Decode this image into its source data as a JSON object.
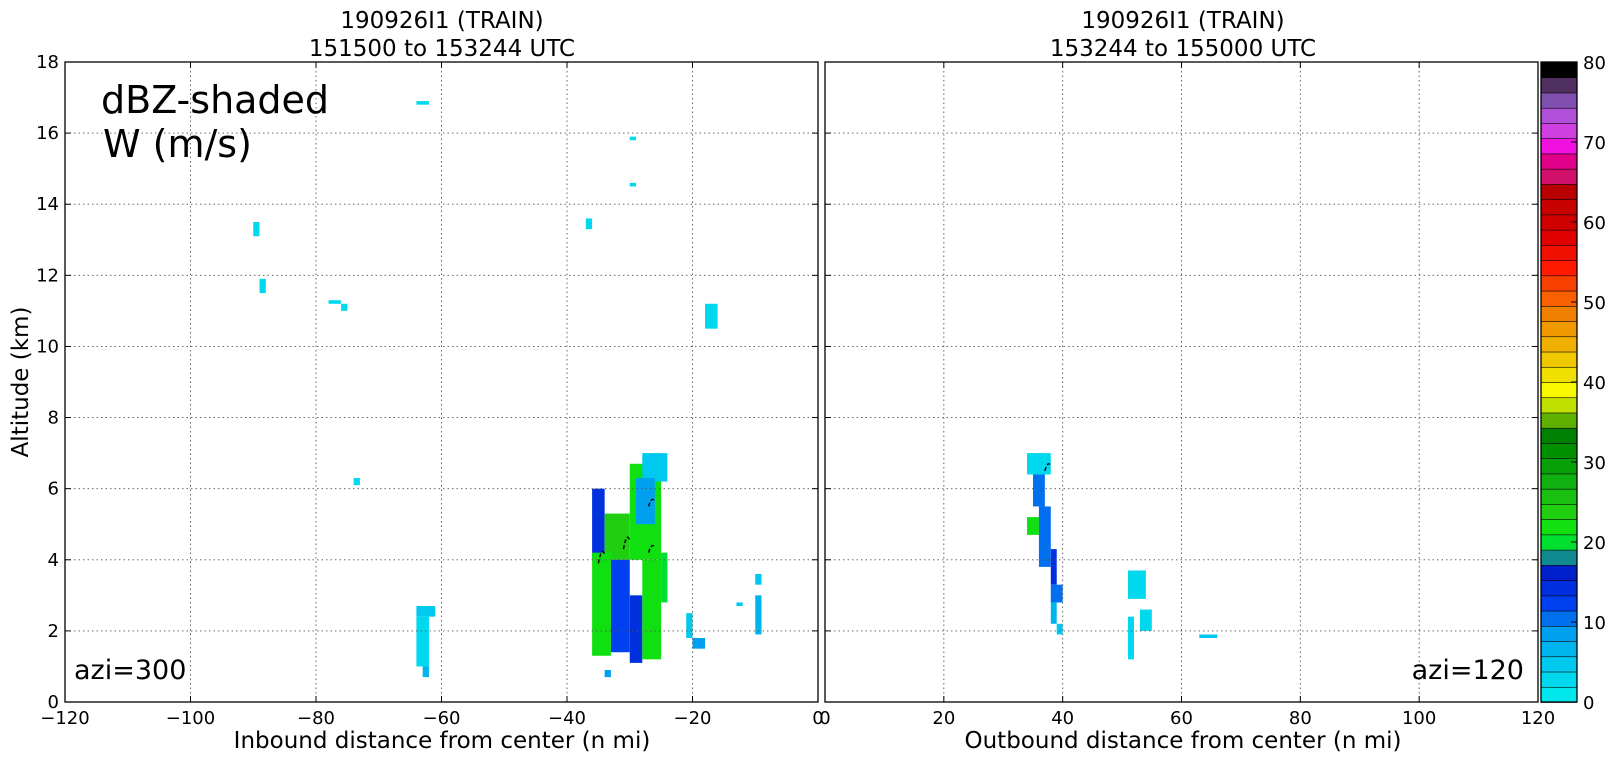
{
  "chart_data": [
    {
      "type": "heatmap",
      "title": [
        "190926I1 (TRAIN)",
        "151500 to 153244 UTC"
      ],
      "xlabel": "Inbound distance from center (n mi)",
      "ylabel": "Altitude (km)",
      "xlim": [
        -120,
        0
      ],
      "ylim": [
        0,
        18
      ],
      "xticks": [
        -120,
        -100,
        -80,
        -60,
        -40,
        -20,
        0
      ],
      "yticks": [
        0,
        2,
        4,
        6,
        8,
        10,
        12,
        14,
        16,
        18
      ],
      "grid": true,
      "annotations": [
        "dBZ-shaded",
        "W (m/s)",
        "azi=300"
      ],
      "cells": [
        {
          "x": [
            -64,
            -62
          ],
          "y": [
            16.8,
            16.9
          ],
          "dbz": 2
        },
        {
          "x": [
            -30,
            -29
          ],
          "y": [
            15.8,
            15.9
          ],
          "dbz": 2
        },
        {
          "x": [
            -30,
            -29
          ],
          "y": [
            14.5,
            14.6
          ],
          "dbz": 2
        },
        {
          "x": [
            -90,
            -89
          ],
          "y": [
            13.1,
            13.5
          ],
          "dbz": 2
        },
        {
          "x": [
            -37,
            -36
          ],
          "y": [
            13.3,
            13.6
          ],
          "dbz": 2
        },
        {
          "x": [
            -89,
            -88
          ],
          "y": [
            11.5,
            11.9
          ],
          "dbz": 2
        },
        {
          "x": [
            -78,
            -76
          ],
          "y": [
            11.2,
            11.3
          ],
          "dbz": 2
        },
        {
          "x": [
            -76,
            -75
          ],
          "y": [
            11.0,
            11.2
          ],
          "dbz": 2
        },
        {
          "x": [
            -18,
            -16
          ],
          "y": [
            10.5,
            11.2
          ],
          "dbz": 2
        },
        {
          "x": [
            -74,
            -73
          ],
          "y": [
            6.1,
            6.3
          ],
          "dbz": 2
        },
        {
          "x": [
            -64,
            -61
          ],
          "y": [
            2.4,
            2.7
          ],
          "dbz": 4
        },
        {
          "x": [
            -64,
            -62
          ],
          "y": [
            1.0,
            2.4
          ],
          "dbz": 2
        },
        {
          "x": [
            -63,
            -62
          ],
          "y": [
            0.7,
            1.0
          ],
          "dbz": 6
        },
        {
          "x": [
            -36,
            -34
          ],
          "y": [
            4.0,
            6.0
          ],
          "dbz": 14
        },
        {
          "x": [
            -34,
            -30
          ],
          "y": [
            4.0,
            5.3
          ],
          "dbz": 24
        },
        {
          "x": [
            -30,
            -25
          ],
          "y": [
            4.0,
            6.7
          ],
          "dbz": 22
        },
        {
          "x": [
            -28,
            -24
          ],
          "y": [
            6.2,
            7.0
          ],
          "dbz": 4
        },
        {
          "x": [
            -29,
            -26
          ],
          "y": [
            5.0,
            6.3
          ],
          "dbz": 8
        },
        {
          "x": [
            -36,
            -33
          ],
          "y": [
            1.3,
            4.2
          ],
          "dbz": 22
        },
        {
          "x": [
            -33,
            -30
          ],
          "y": [
            1.4,
            4.0
          ],
          "dbz": 12
        },
        {
          "x": [
            -30,
            -28
          ],
          "y": [
            1.1,
            3.0
          ],
          "dbz": 14
        },
        {
          "x": [
            -28,
            -25
          ],
          "y": [
            1.2,
            4.0
          ],
          "dbz": 23
        },
        {
          "x": [
            -25,
            -24
          ],
          "y": [
            2.8,
            4.2
          ],
          "dbz": 21
        },
        {
          "x": [
            -34,
            -33
          ],
          "y": [
            0.7,
            0.9
          ],
          "dbz": 8
        },
        {
          "x": [
            -21,
            -20
          ],
          "y": [
            1.8,
            2.5
          ],
          "dbz": 4
        },
        {
          "x": [
            -20,
            -18
          ],
          "y": [
            1.5,
            1.8
          ],
          "dbz": 8
        },
        {
          "x": [
            -13,
            -12
          ],
          "y": [
            2.7,
            2.8
          ],
          "dbz": 4
        },
        {
          "x": [
            -10,
            -9
          ],
          "y": [
            3.3,
            3.6
          ],
          "dbz": 4
        },
        {
          "x": [
            -10,
            -9
          ],
          "y": [
            1.9,
            3.0
          ],
          "dbz": 6
        }
      ],
      "w_contours": [
        {
          "x": [
            -35,
            -34
          ],
          "y": [
            3.9,
            4.4
          ]
        },
        {
          "x": [
            -31,
            -30
          ],
          "y": [
            4.3,
            4.8
          ]
        },
        {
          "x": [
            -27,
            -26
          ],
          "y": [
            5.5,
            5.8
          ]
        },
        {
          "x": [
            -27,
            -26
          ],
          "y": [
            4.2,
            4.5
          ]
        }
      ]
    },
    {
      "type": "heatmap",
      "title": [
        "190926I1 (TRAIN)",
        "153244 to 155000 UTC"
      ],
      "xlabel": "Outbound distance from center (n mi)",
      "ylabel": "",
      "xlim": [
        0,
        120
      ],
      "ylim": [
        0,
        18
      ],
      "xticks": [
        0,
        20,
        40,
        60,
        80,
        100,
        120
      ],
      "yticks": [
        0,
        2,
        4,
        6,
        8,
        10,
        12,
        14,
        16,
        18
      ],
      "grid": true,
      "annotations": [
        "azi=120"
      ],
      "cells": [
        {
          "x": [
            34,
            38
          ],
          "y": [
            6.4,
            7.0
          ],
          "dbz": 2
        },
        {
          "x": [
            35,
            37
          ],
          "y": [
            5.5,
            6.4
          ],
          "dbz": 10
        },
        {
          "x": [
            34,
            36
          ],
          "y": [
            4.7,
            5.2
          ],
          "dbz": 22
        },
        {
          "x": [
            36,
            38
          ],
          "y": [
            3.8,
            5.5
          ],
          "dbz": 10
        },
        {
          "x": [
            38,
            39
          ],
          "y": [
            3.3,
            4.3
          ],
          "dbz": 14
        },
        {
          "x": [
            38,
            40
          ],
          "y": [
            2.8,
            3.3
          ],
          "dbz": 10
        },
        {
          "x": [
            38,
            39
          ],
          "y": [
            2.2,
            2.8
          ],
          "dbz": 6
        },
        {
          "x": [
            39,
            40
          ],
          "y": [
            1.9,
            2.2
          ],
          "dbz": 4
        },
        {
          "x": [
            51,
            54
          ],
          "y": [
            2.9,
            3.7
          ],
          "dbz": 2
        },
        {
          "x": [
            51,
            52
          ],
          "y": [
            1.2,
            2.4
          ],
          "dbz": 2
        },
        {
          "x": [
            53,
            55
          ],
          "y": [
            2.0,
            2.6
          ],
          "dbz": 2
        },
        {
          "x": [
            63,
            66
          ],
          "y": [
            1.8,
            1.9
          ],
          "dbz": 4
        }
      ],
      "w_contours": [
        {
          "x": [
            37,
            38
          ],
          "y": [
            6.5,
            6.8
          ]
        }
      ]
    }
  ],
  "colorbar": {
    "range": [
      0,
      80
    ],
    "step": 2,
    "ticks": [
      0,
      10,
      20,
      30,
      40,
      50,
      60,
      70,
      80
    ],
    "colors": [
      "#00e8ee",
      "#00d8ee",
      "#00c8ee",
      "#00b4ee",
      "#00a0ee",
      "#0070ee",
      "#0040ee",
      "#0030dd",
      "#0020cc",
      "#108a90",
      "#00e030",
      "#10e010",
      "#20d010",
      "#18c010",
      "#10b010",
      "#08a008",
      "#009000",
      "#008000",
      "#60b000",
      "#c0e000",
      "#f8f800",
      "#f0e000",
      "#f0c800",
      "#f0b000",
      "#f09800",
      "#f08000",
      "#f86000",
      "#f84000",
      "#ff1a00",
      "#f01000",
      "#e00000",
      "#d00000",
      "#c80000",
      "#b80000",
      "#d0106a",
      "#e0008a",
      "#f010e0",
      "#d040e0",
      "#b050d8",
      "#8050b0",
      "#503060",
      "#000000"
    ]
  }
}
